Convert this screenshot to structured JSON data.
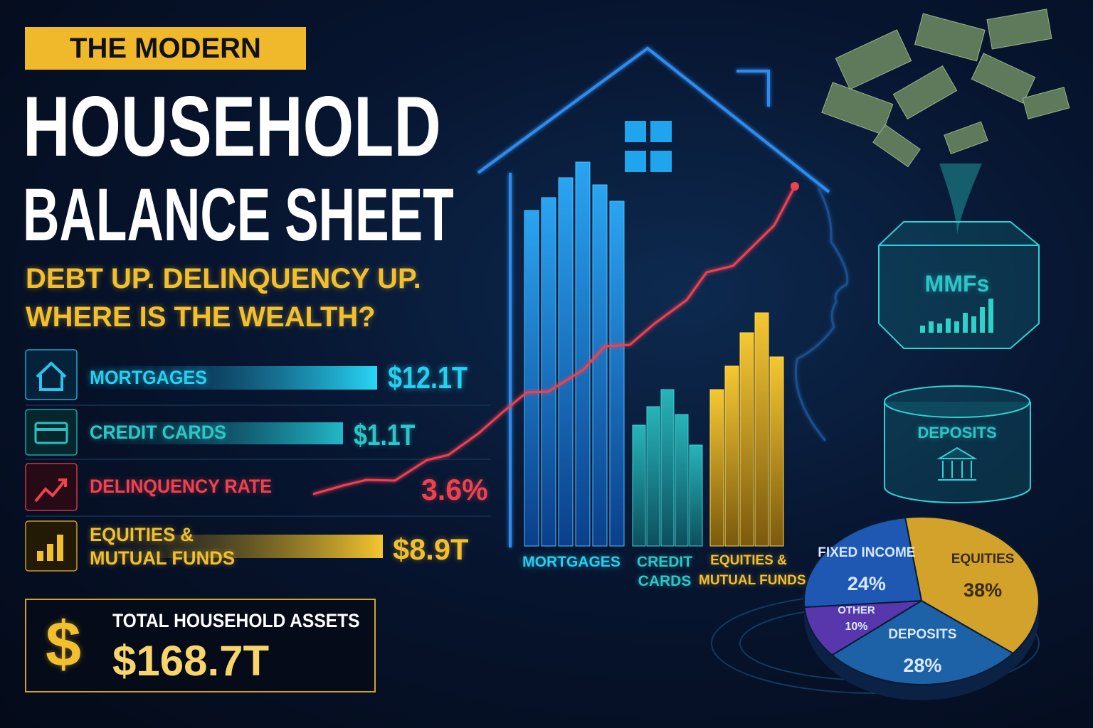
{
  "header": {
    "kicker": "THE MODERN",
    "title_lines": [
      "HOUSEHOLD",
      "BALANCE SHEET"
    ],
    "subtitle_lines": [
      "DEBT UP. DELINQUENCY UP.",
      "WHERE IS THE WEALTH?"
    ]
  },
  "metrics": [
    {
      "label_lines": [
        "MORTGAGES"
      ],
      "value": "$12.1T"
    },
    {
      "label_lines": [
        "CREDIT CARDS"
      ],
      "value": "$1.1T"
    },
    {
      "label_lines": [
        "DELINQUENCY RATE"
      ],
      "value": "3.6%"
    },
    {
      "label_lines": [
        "EQUITIES &",
        "MUTUAL FUNDS"
      ],
      "value": "$8.9T"
    }
  ],
  "total": {
    "symbol": "$",
    "label": "TOTAL HOUSEHOLD ASSETS",
    "value": "$168.7T"
  },
  "illustration": {
    "bar_labels": [
      [
        "MORTGAGES"
      ],
      [
        "CREDIT",
        "CARDS"
      ],
      [
        "EQUITIES &",
        "MUTUAL FUNDS"
      ]
    ],
    "vault_top": "MMFs",
    "vault_bottom": "DEPOSITS"
  },
  "chart_data": {
    "type": "pie",
    "categories": [
      "EQUITIES",
      "DEPOSITS",
      "OTHER",
      "FIXED INCOME"
    ],
    "values": [
      38,
      28,
      10,
      24
    ],
    "value_labels": [
      "38%",
      "28%",
      "10%",
      "24%"
    ],
    "colors": [
      "#d2a22a",
      "#1d62a6",
      "#5837ad",
      "#1f58b3"
    ]
  }
}
